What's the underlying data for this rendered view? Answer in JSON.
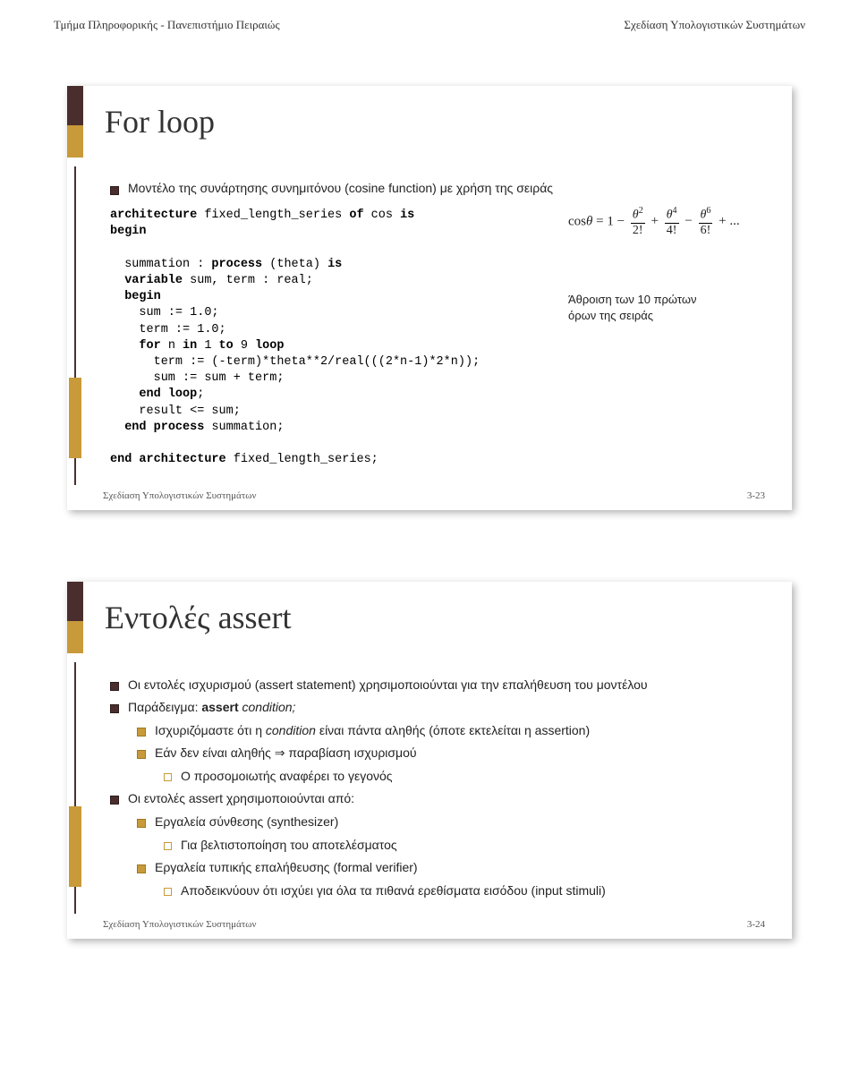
{
  "header": {
    "left": "Τμήμα Πληροφορικής - Πανεπιστήμιο Πειραιώς",
    "right": "Σχεδίαση Υπολογιστικών Συστημάτων"
  },
  "slide1": {
    "title": "For loop",
    "subtitle": "Μοντέλο της συνάρτησης συνημιτόνου (cosine function) με χρήση της σειράς",
    "code_lines": [
      {
        "t": "architecture fixed_length_series of cos is",
        "kw": [
          "architecture",
          "of",
          "is"
        ]
      },
      {
        "t": "begin",
        "kw": [
          "begin"
        ]
      },
      {
        "t": ""
      },
      {
        "t": "  summation : process (theta) is",
        "kw": [
          "process",
          "is"
        ]
      },
      {
        "t": "  variable sum, term : real;",
        "kw": [
          "variable"
        ]
      },
      {
        "t": "  begin",
        "kw": [
          "begin"
        ]
      },
      {
        "t": "    sum := 1.0;"
      },
      {
        "t": "    term := 1.0;"
      },
      {
        "t": "    for n in 1 to 9 loop",
        "kw": [
          "for",
          "in",
          "to",
          "loop"
        ]
      },
      {
        "t": "      term := (-term)*theta**2/real(((2*n-1)*2*n));"
      },
      {
        "t": "      sum := sum + term;"
      },
      {
        "t": "    end loop;",
        "kw": [
          "end",
          "loop"
        ]
      },
      {
        "t": "    result <= sum;"
      },
      {
        "t": "  end process summation;",
        "kw": [
          "end",
          "process"
        ]
      },
      {
        "t": ""
      },
      {
        "t": "end architecture fixed_length_series;",
        "kw": [
          "end",
          "architecture"
        ]
      }
    ],
    "formula": {
      "lead": "cos",
      "theta": "θ",
      "eq": "= 1 −",
      "terms": [
        {
          "num_pow": "2",
          "den": "2!",
          "op": "+"
        },
        {
          "num_pow": "4",
          "den": "4!",
          "op": "−"
        },
        {
          "num_pow": "6",
          "den": "6!",
          "op": "+ ..."
        }
      ]
    },
    "note_line1": "Άθροιση των 10 πρώτων",
    "note_line2": "όρων της σειράς",
    "footer_left": "Σχεδίαση Υπολογιστικών Συστημάτων",
    "footer_right": "3-23"
  },
  "slide2": {
    "title": "Εντολές assert",
    "bullets": [
      {
        "level": 0,
        "style": "dark",
        "text": "Οι εντολές ισχυρισμού (assert statement) χρησιμοποιούνται για την επαλήθευση του μοντέλου"
      },
      {
        "level": 0,
        "style": "dark",
        "text_prefix": "Παράδειγμα: ",
        "bold": "assert",
        "text_suffix": " condition;",
        "italic_suffix": true
      },
      {
        "level": 1,
        "style": "gold",
        "text_prefix": "Ισχυριζόμαστε ότι η ",
        "italic_word": "condition",
        "text_suffix": " είναι πάντα αληθής (όποτε εκτελείται η assertion)"
      },
      {
        "level": 1,
        "style": "gold",
        "text": "Εάν δεν είναι αληθής ⇒ παραβίαση  ισχυρισμού"
      },
      {
        "level": 2,
        "style": "open",
        "text": "Ο προσομοιωτής αναφέρει το γεγονός"
      },
      {
        "level": 0,
        "style": "dark",
        "text": "Οι εντολές assert χρησιμοποιούνται από:"
      },
      {
        "level": 1,
        "style": "gold",
        "text": "Εργαλεία σύνθεσης (synthesizer)"
      },
      {
        "level": 2,
        "style": "open",
        "text": "Για βελτιστοποίηση του αποτελέσματος"
      },
      {
        "level": 1,
        "style": "gold",
        "text": "Εργαλεία τυπικής επαλήθευσης (formal verifier)"
      },
      {
        "level": 2,
        "style": "open",
        "text": "Αποδεικνύουν ότι ισχύει για όλα τα πιθανά ερεθίσματα εισόδου (input stimuli)"
      }
    ],
    "footer_left": "Σχεδίαση Υπολογιστικών Συστημάτων",
    "footer_right": "3-24"
  },
  "colors": {
    "dark": "#4a2e2e",
    "gold": "#c89a3a",
    "text": "#222222",
    "bg": "#ffffff"
  }
}
